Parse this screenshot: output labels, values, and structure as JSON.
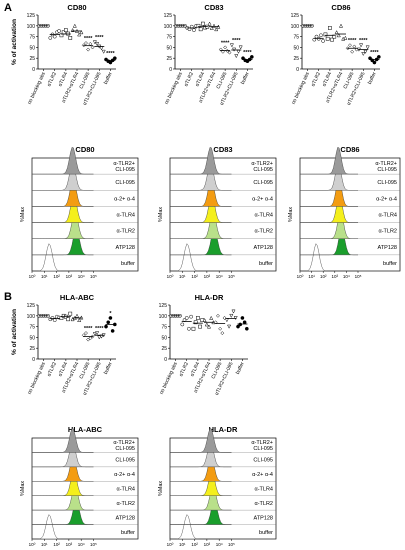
{
  "panels": [
    {
      "id": "A",
      "label": "A"
    },
    {
      "id": "B",
      "label": "B"
    }
  ],
  "scatter_categories_A": [
    "no blocking abs",
    "αTLR2",
    "αTLR4",
    "αTLR2+αTLR4",
    "CLI-095",
    "αTLR2+CLI-095",
    "buffer"
  ],
  "histo_rows": [
    "buffer",
    "ATP128",
    "α-TLR2",
    "α-TLR4",
    "α-2+ α-4",
    "CLI-095",
    "α-TLR2+\nCLI-095"
  ],
  "histo_colors": [
    "#ffffff",
    "#1a9e2c",
    "#b9e08a",
    "#f4ef1c",
    "#f39c12",
    "#cfcfcf",
    "#9a9a9a"
  ],
  "histo_axis": {
    "ylabel": "%Max",
    "xticks": [
      "10⁰",
      "10¹",
      "10²",
      "10³",
      "10⁴",
      "10⁵"
    ]
  },
  "chart_data": [
    {
      "type": "scatter",
      "title": "CD80",
      "ylabel": "% of activation",
      "ylim": [
        0,
        125
      ],
      "yticks": [
        0,
        25,
        50,
        75,
        100,
        125
      ],
      "categories": [
        "no blocking abs",
        "αTLR2",
        "αTLR4",
        "αTLR2+αTLR4",
        "CLI-095",
        "αTLR2+CLI-095",
        "buffer"
      ],
      "points": [
        [
          100,
          100,
          100,
          100,
          100
        ],
        [
          72,
          80,
          75,
          85,
          88
        ],
        [
          78,
          85,
          90,
          82,
          72
        ],
        [
          90,
          100,
          88,
          80,
          85
        ],
        [
          55,
          60,
          45,
          58,
          50
        ],
        [
          62,
          58,
          52,
          48,
          40
        ],
        [
          22,
          18,
          15,
          20,
          25
        ]
      ],
      "means": [
        100,
        80,
        81,
        88,
        54,
        52,
        20
      ],
      "stars": [
        "",
        "",
        "",
        "",
        "****",
        "****",
        "****"
      ]
    },
    {
      "type": "scatter",
      "title": "CD83",
      "ylabel": "",
      "ylim": [
        0,
        125
      ],
      "yticks": [
        0,
        25,
        50,
        75,
        100,
        125
      ],
      "categories": [
        "no blocking abs",
        "αTLR2",
        "αTLR4",
        "αTLR2+αTLR4",
        "CLI-095",
        "αTLR2+CLI-095",
        "buffer"
      ],
      "points": [
        [
          100,
          100,
          100,
          100,
          100
        ],
        [
          95,
          92,
          98,
          90,
          100
        ],
        [
          100,
          92,
          105,
          96,
          98
        ],
        [
          105,
          95,
          100,
          92,
          98
        ],
        [
          45,
          40,
          50,
          42,
          38
        ],
        [
          55,
          45,
          30,
          40,
          50
        ],
        [
          25,
          20,
          18,
          22,
          28
        ]
      ],
      "means": [
        100,
        95,
        98,
        98,
        43,
        44,
        22
      ],
      "stars": [
        "",
        "",
        "",
        "",
        "****",
        "****",
        "****"
      ]
    },
    {
      "type": "scatter",
      "title": "CD86",
      "ylabel": "",
      "ylim": [
        0,
        125
      ],
      "yticks": [
        0,
        25,
        50,
        75,
        100,
        125
      ],
      "categories": [
        "no blocking abs",
        "αTLR2",
        "αTLR4",
        "αTLR2+αTLR4",
        "CLI-095",
        "αTLR2+CLI-095",
        "buffer"
      ],
      "points": [
        [
          100,
          100,
          100,
          100,
          100
        ],
        [
          68,
          75,
          70,
          78,
          65
        ],
        [
          80,
          70,
          95,
          68,
          75
        ],
        [
          85,
          78,
          100,
          70,
          72
        ],
        [
          48,
          55,
          40,
          52,
          45
        ],
        [
          45,
          55,
          35,
          40,
          50
        ],
        [
          25,
          20,
          15,
          22,
          28
        ]
      ],
      "means": [
        100,
        71,
        78,
        81,
        48,
        45,
        22
      ],
      "stars": [
        "",
        "",
        "",
        "",
        "****",
        "****",
        "****"
      ]
    },
    {
      "type": "scatter",
      "title": "HLA-ABC",
      "ylabel": "% of activation",
      "ylim": [
        0,
        125
      ],
      "yticks": [
        0,
        25,
        50,
        75,
        100,
        125
      ],
      "categories": [
        "no blocking abs",
        "αTLR2",
        "αTLR4",
        "αTLR2+αTLR4",
        "CLI-095",
        "αTLR2+CLI-095",
        "buffer"
      ],
      "points": [
        [
          100,
          100,
          100,
          100,
          100
        ],
        [
          92,
          95,
          90,
          98,
          96
        ],
        [
          95,
          100,
          98,
          92,
          105
        ],
        [
          92,
          95,
          100,
          90,
          96
        ],
        [
          55,
          60,
          45,
          48,
          52
        ],
        [
          58,
          60,
          50,
          52,
          55
        ],
        [
          75,
          85,
          95,
          65,
          80
        ]
      ],
      "means": [
        100,
        94,
        98,
        95,
        52,
        55,
        80
      ],
      "stars": [
        "",
        "",
        "",
        "",
        "****",
        "****",
        "*"
      ]
    },
    {
      "type": "scatter",
      "title": "HLA-DR",
      "ylabel": "",
      "ylim": [
        0,
        125
      ],
      "yticks": [
        0,
        25,
        50,
        75,
        100,
        125
      ],
      "categories": [
        "no blocking abs",
        "αTLR2",
        "αTLR4",
        "αTLR2+αTLR4",
        "CLI-095",
        "αTLR2+CLI-095",
        "buffer"
      ],
      "points": [
        [
          100,
          100,
          100,
          100,
          100
        ],
        [
          80,
          90,
          95,
          70,
          98
        ],
        [
          70,
          85,
          95,
          75,
          90
        ],
        [
          90,
          80,
          75,
          95,
          85
        ],
        [
          85,
          100,
          70,
          60,
          95
        ],
        [
          90,
          75,
          100,
          110,
          95
        ],
        [
          75,
          80,
          95,
          85,
          70
        ]
      ],
      "means": [
        100,
        87,
        83,
        85,
        82,
        94,
        81
      ],
      "stars": [
        "",
        "",
        "",
        "",
        "",
        "",
        ""
      ]
    }
  ],
  "histograms": [
    {
      "title": "CD80"
    },
    {
      "title": "CD83"
    },
    {
      "title": "CD86"
    },
    {
      "title": "HLA-ABC"
    },
    {
      "title": "HLA-DR"
    }
  ]
}
